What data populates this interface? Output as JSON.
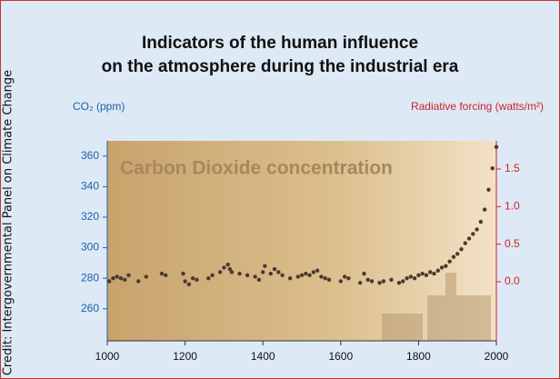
{
  "chart_data": {
    "type": "scatter",
    "title": [
      "Indicators of the human influence",
      "on the atmosphere during the industrial era"
    ],
    "credit": "Credit: Intergovernmental Panel on Climate Change",
    "y_label": "CO₂ (ppm)",
    "y2_label": "Radiative forcing (watts/m²)",
    "annotation": "Carbon Dioxide concentration",
    "color": "#4a3a30",
    "x": [
      1005,
      1015,
      1025,
      1035,
      1045,
      1055,
      1080,
      1100,
      1140,
      1150,
      1195,
      1200,
      1210,
      1220,
      1230,
      1260,
      1270,
      1290,
      1300,
      1310,
      1315,
      1320,
      1340,
      1360,
      1380,
      1390,
      1400,
      1405,
      1420,
      1430,
      1440,
      1450,
      1470,
      1490,
      1500,
      1510,
      1520,
      1530,
      1540,
      1550,
      1560,
      1570,
      1600,
      1610,
      1620,
      1650,
      1660,
      1670,
      1680,
      1700,
      1710,
      1730,
      1750,
      1760,
      1770,
      1780,
      1790,
      1800,
      1810,
      1820,
      1830,
      1840,
      1850,
      1860,
      1870,
      1880,
      1890,
      1900,
      1910,
      1920,
      1930,
      1940,
      1950,
      1960,
      1970,
      1980,
      1990,
      2000
    ],
    "values": [
      278,
      280,
      281,
      280,
      279,
      282,
      278,
      281,
      283,
      282,
      283,
      278,
      276,
      280,
      279,
      280,
      282,
      284,
      287,
      289,
      286,
      284,
      283,
      282,
      281,
      279,
      284,
      288,
      283,
      286,
      284,
      282,
      280,
      281,
      282,
      283,
      282,
      284,
      285,
      281,
      280,
      279,
      278,
      281,
      280,
      277,
      283,
      279,
      278,
      277,
      278,
      279,
      277,
      278,
      280,
      281,
      280,
      282,
      283,
      282,
      284,
      283,
      285,
      287,
      288,
      291,
      294,
      296,
      299,
      303,
      306,
      309,
      312,
      317,
      325,
      338,
      352,
      366
    ],
    "xlim": [
      1000,
      2000
    ],
    "xticks": [
      1000,
      1200,
      1400,
      1600,
      1800,
      2000
    ],
    "ylim": [
      239,
      370
    ],
    "yticks": [
      260,
      280,
      300,
      320,
      340,
      360
    ],
    "y2lim": [
      -0.786,
      1.875
    ],
    "y2ticks": [
      {
        "value": 0,
        "label": "0.0"
      },
      {
        "value": 0.5,
        "label": "0.5"
      },
      {
        "value": 1,
        "label": "1.0"
      },
      {
        "value": 1.5,
        "label": "1.5"
      }
    ]
  }
}
